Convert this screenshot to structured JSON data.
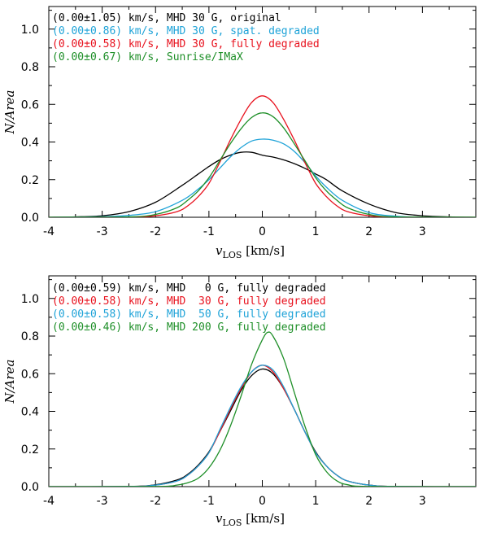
{
  "chart_data": [
    {
      "type": "line",
      "xlabel": "v_LOS [km/s]",
      "ylabel": "N/Area",
      "xlim": [
        -4,
        4
      ],
      "ylim": [
        0,
        1.12
      ],
      "xticks": [
        -4,
        -3,
        -2,
        -1,
        0,
        1,
        2,
        3
      ],
      "xtick_labels": [
        "-4",
        "-3",
        "-2",
        "-1",
        "0",
        "1",
        "2",
        "3"
      ],
      "yticks": [
        0,
        0.2,
        0.4,
        0.6,
        0.8,
        1.0
      ],
      "ytick_labels": [
        "0.0",
        "0.2",
        "0.4",
        "0.6",
        "0.8",
        "1.0"
      ],
      "legend_position": "top-left",
      "series": [
        {
          "name": "(0.00±1.05) km/s, MHD 30 G, original",
          "color": "#000000",
          "x": [
            -4,
            -3.5,
            -3,
            -2.5,
            -2,
            -1.5,
            -1.2,
            -1,
            -0.8,
            -0.6,
            -0.4,
            -0.2,
            0,
            0.2,
            0.4,
            0.6,
            0.8,
            1,
            1.2,
            1.5,
            2,
            2.5,
            3,
            3.5,
            4
          ],
          "y": [
            0.0,
            0.002,
            0.008,
            0.03,
            0.08,
            0.17,
            0.23,
            0.27,
            0.305,
            0.33,
            0.345,
            0.345,
            0.33,
            0.32,
            0.305,
            0.285,
            0.26,
            0.23,
            0.2,
            0.14,
            0.07,
            0.025,
            0.008,
            0.002,
            0.0
          ]
        },
        {
          "name": "(0.00±0.86) km/s, MHD 30 G, spat. degraded",
          "color": "#1fa3d8",
          "x": [
            -4,
            -3,
            -2.5,
            -2,
            -1.5,
            -1.2,
            -1,
            -0.8,
            -0.6,
            -0.4,
            -0.2,
            0,
            0.2,
            0.4,
            0.6,
            0.8,
            1,
            1.2,
            1.5,
            2,
            2.5,
            3,
            4
          ],
          "y": [
            0.0,
            0.003,
            0.01,
            0.03,
            0.09,
            0.15,
            0.2,
            0.26,
            0.32,
            0.37,
            0.405,
            0.415,
            0.41,
            0.39,
            0.35,
            0.29,
            0.22,
            0.16,
            0.09,
            0.025,
            0.006,
            0.001,
            0.0
          ]
        },
        {
          "name": "(0.00±0.58) km/s, MHD 30 G, fully degraded",
          "color": "#e8121e",
          "x": [
            -4,
            -2.5,
            -2,
            -1.6,
            -1.4,
            -1.2,
            -1,
            -0.8,
            -0.6,
            -0.4,
            -0.2,
            0,
            0.2,
            0.4,
            0.6,
            0.8,
            1,
            1.2,
            1.4,
            1.6,
            2,
            2.5,
            4
          ],
          "y": [
            0.0,
            0.001,
            0.008,
            0.03,
            0.06,
            0.11,
            0.18,
            0.29,
            0.41,
            0.52,
            0.61,
            0.645,
            0.61,
            0.52,
            0.41,
            0.29,
            0.18,
            0.11,
            0.06,
            0.03,
            0.008,
            0.001,
            0.0
          ]
        },
        {
          "name": "(0.00±0.67) km/s, Sunrise/IMaX",
          "color": "#1e8f28",
          "x": [
            -4,
            -2.5,
            -2,
            -1.6,
            -1.4,
            -1.2,
            -1,
            -0.8,
            -0.6,
            -0.4,
            -0.2,
            0,
            0.2,
            0.4,
            0.6,
            0.8,
            1,
            1.2,
            1.4,
            1.6,
            2,
            2.5,
            4
          ],
          "y": [
            0.0,
            0.002,
            0.015,
            0.05,
            0.09,
            0.14,
            0.21,
            0.3,
            0.39,
            0.47,
            0.53,
            0.555,
            0.535,
            0.475,
            0.39,
            0.3,
            0.21,
            0.14,
            0.09,
            0.05,
            0.015,
            0.002,
            0.0
          ]
        }
      ]
    },
    {
      "type": "line",
      "xlabel": "v_LOS [km/s]",
      "ylabel": "N/Area",
      "xlim": [
        -4,
        4
      ],
      "ylim": [
        0,
        1.12
      ],
      "xticks": [
        -4,
        -3,
        -2,
        -1,
        0,
        1,
        2,
        3
      ],
      "xtick_labels": [
        "-4",
        "-3",
        "-2",
        "-1",
        "0",
        "1",
        "2",
        "3"
      ],
      "yticks": [
        0,
        0.2,
        0.4,
        0.6,
        0.8,
        1.0
      ],
      "ytick_labels": [
        "0.0",
        "0.2",
        "0.4",
        "0.6",
        "0.8",
        "1.0"
      ],
      "legend_position": "top-left",
      "series": [
        {
          "name": "(0.00±0.59) km/s, MHD   0 G, fully degraded",
          "color": "#000000",
          "x": [
            -4,
            -2.5,
            -2,
            -1.6,
            -1.4,
            -1.2,
            -1,
            -0.8,
            -0.6,
            -0.4,
            -0.2,
            0,
            0.2,
            0.4,
            0.6,
            0.8,
            1,
            1.2,
            1.4,
            1.6,
            2,
            2.5,
            4
          ],
          "y": [
            0.0,
            0.001,
            0.01,
            0.035,
            0.065,
            0.115,
            0.185,
            0.29,
            0.4,
            0.51,
            0.59,
            0.625,
            0.6,
            0.52,
            0.41,
            0.29,
            0.185,
            0.11,
            0.06,
            0.03,
            0.008,
            0.001,
            0.0
          ]
        },
        {
          "name": "(0.00±0.58) km/s, MHD  30 G, fully degraded",
          "color": "#e8121e",
          "x": [
            -4,
            -2.5,
            -2,
            -1.6,
            -1.4,
            -1.2,
            -1,
            -0.8,
            -0.6,
            -0.4,
            -0.2,
            0,
            0.2,
            0.4,
            0.6,
            0.8,
            1,
            1.2,
            1.4,
            1.6,
            2,
            2.5,
            4
          ],
          "y": [
            0.0,
            0.001,
            0.008,
            0.03,
            0.06,
            0.11,
            0.18,
            0.29,
            0.41,
            0.52,
            0.61,
            0.645,
            0.61,
            0.52,
            0.41,
            0.29,
            0.18,
            0.11,
            0.06,
            0.03,
            0.008,
            0.001,
            0.0
          ]
        },
        {
          "name": "(0.00±0.58) km/s, MHD  50 G, fully degraded",
          "color": "#1fa3d8",
          "x": [
            -4,
            -2.5,
            -2,
            -1.6,
            -1.4,
            -1.2,
            -1,
            -0.8,
            -0.6,
            -0.4,
            -0.2,
            0,
            0.2,
            0.4,
            0.6,
            0.8,
            1,
            1.2,
            1.4,
            1.6,
            2,
            2.5,
            4
          ],
          "y": [
            0.0,
            0.001,
            0.008,
            0.03,
            0.06,
            0.11,
            0.18,
            0.3,
            0.42,
            0.53,
            0.61,
            0.645,
            0.62,
            0.53,
            0.41,
            0.29,
            0.18,
            0.11,
            0.06,
            0.03,
            0.008,
            0.001,
            0.0
          ]
        },
        {
          "name": "(0.00±0.46) km/s, MHD 200 G, fully degraded",
          "color": "#1e8f28",
          "x": [
            -4,
            -2,
            -1.6,
            -1.4,
            -1.2,
            -1,
            -0.8,
            -0.6,
            -0.4,
            -0.2,
            0,
            0.1,
            0.2,
            0.4,
            0.6,
            0.8,
            1,
            1.2,
            1.4,
            1.6,
            2,
            4
          ],
          "y": [
            0.0,
            0.001,
            0.008,
            0.02,
            0.045,
            0.1,
            0.19,
            0.32,
            0.48,
            0.65,
            0.78,
            0.82,
            0.8,
            0.68,
            0.5,
            0.32,
            0.17,
            0.08,
            0.03,
            0.01,
            0.001,
            0.0
          ]
        }
      ]
    }
  ]
}
